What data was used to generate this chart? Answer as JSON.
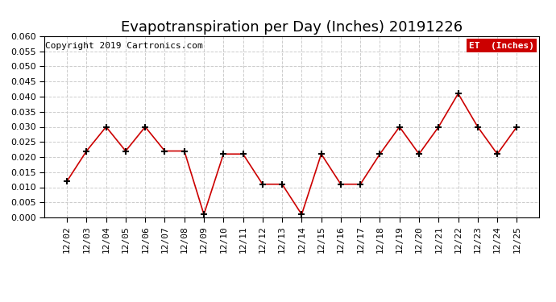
{
  "title": "Evapotranspiration per Day (Inches) 20191226",
  "copyright_text": "Copyright 2019 Cartronics.com",
  "legend_label": "ET  (Inches)",
  "legend_bg": "#cc0000",
  "legend_text_color": "#ffffff",
  "line_color": "#cc0000",
  "marker_color": "#000000",
  "x_labels": [
    "12/02",
    "12/03",
    "12/04",
    "12/05",
    "12/06",
    "12/07",
    "12/08",
    "12/09",
    "12/10",
    "12/11",
    "12/12",
    "12/13",
    "12/14",
    "12/15",
    "12/16",
    "12/17",
    "12/18",
    "12/19",
    "12/20",
    "12/21",
    "12/22",
    "12/23",
    "12/24",
    "12/25"
  ],
  "y_values": [
    0.012,
    0.022,
    0.03,
    0.022,
    0.03,
    0.022,
    0.022,
    0.001,
    0.021,
    0.021,
    0.011,
    0.011,
    0.001,
    0.021,
    0.011,
    0.011,
    0.021,
    0.03,
    0.021,
    0.03,
    0.041,
    0.03,
    0.021,
    0.03
  ],
  "ylim": [
    0.0,
    0.06
  ],
  "yticks": [
    0.0,
    0.005,
    0.01,
    0.015,
    0.02,
    0.025,
    0.03,
    0.035,
    0.04,
    0.045,
    0.05,
    0.055,
    0.06
  ],
  "grid_color": "#cccccc",
  "background_color": "#ffffff",
  "title_fontsize": 13,
  "copyright_fontsize": 8,
  "tick_fontsize": 8,
  "figsize": [
    6.9,
    3.75
  ],
  "dpi": 100
}
